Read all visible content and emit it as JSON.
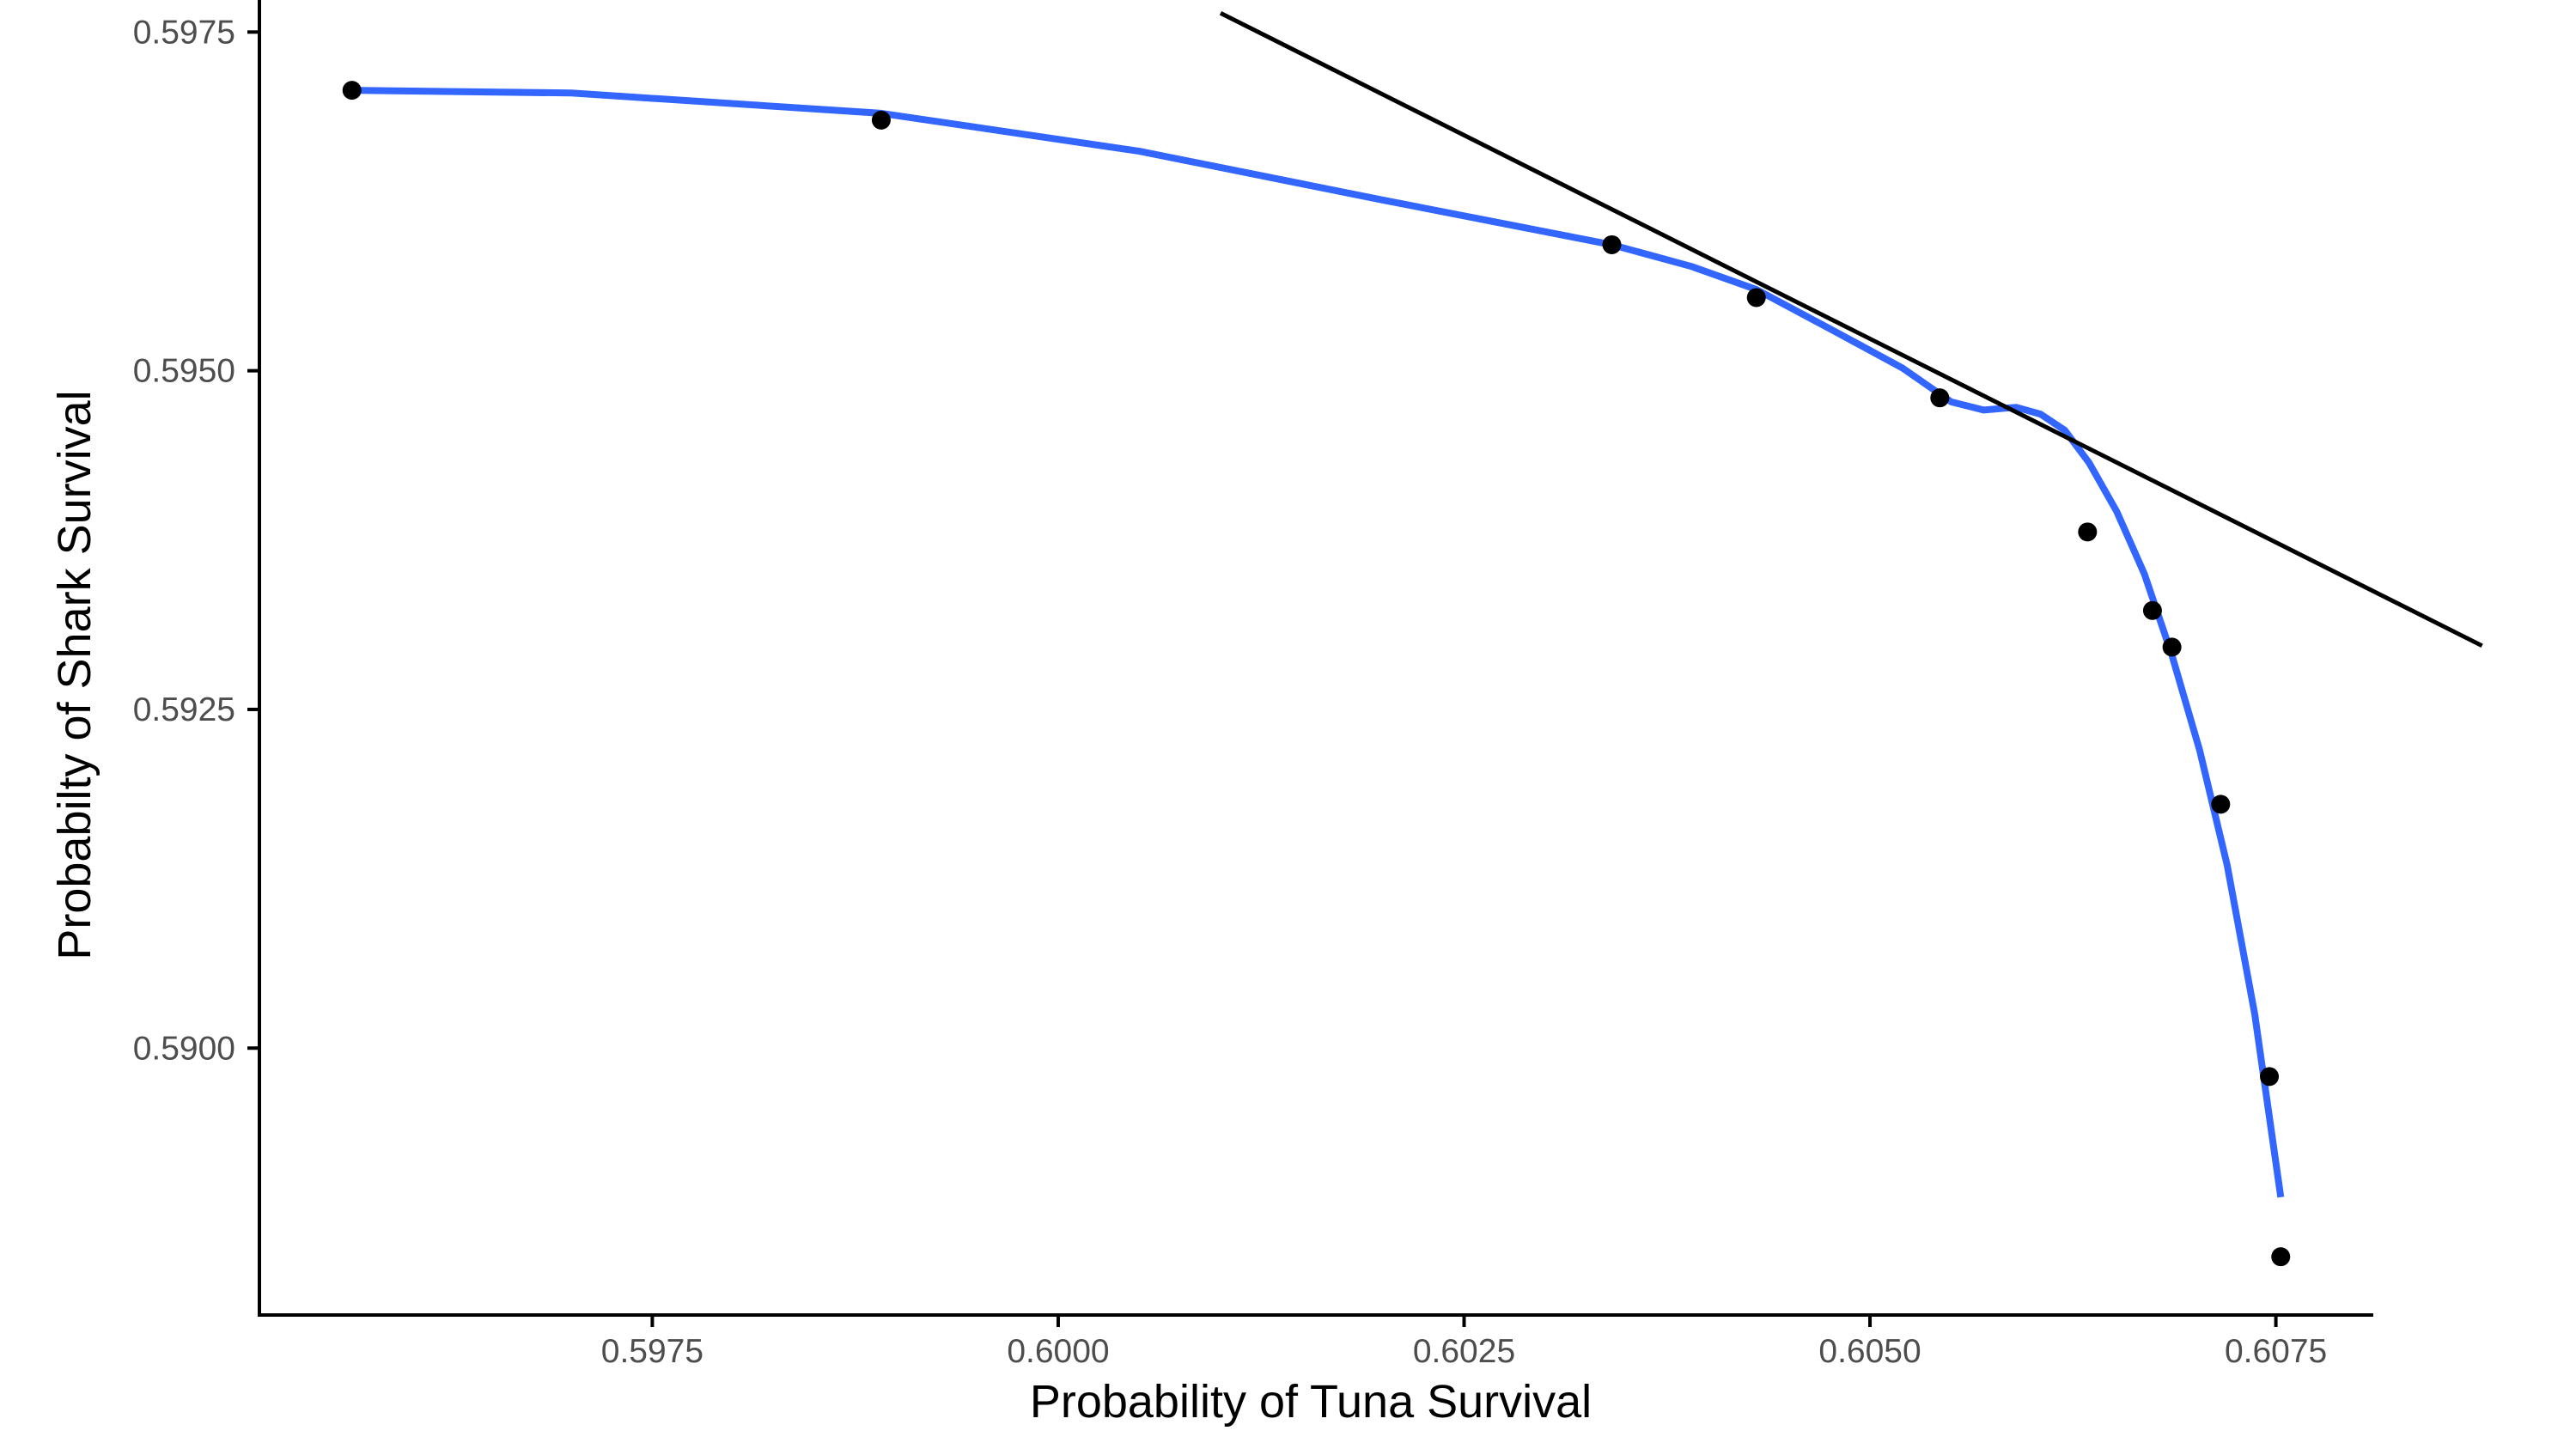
{
  "chart_data": {
    "type": "scatter",
    "title": "",
    "xlabel": "Probability of Tuna Survival",
    "ylabel": "Probabilty of Shark Survival",
    "xlim": [
      0.59508,
      0.6081
    ],
    "ylim": [
      0.58803,
      0.59754
    ],
    "xticks": [
      0.5975,
      0.6,
      0.6025,
      0.605,
      0.6075
    ],
    "xtick_labels": [
      "0.5975",
      "0.6000",
      "0.6025",
      "0.6050",
      "0.6075"
    ],
    "yticks": [
      0.59,
      0.5925,
      0.595,
      0.5975
    ],
    "ytick_labels": [
      "0.5900",
      "0.5925",
      "0.5950",
      "0.5975"
    ],
    "grid": false,
    "colors": {
      "points": "#000000",
      "smooth": "#3366FF",
      "tangent": "#000000",
      "axis": "#000000"
    },
    "points": [
      {
        "x": 0.59565,
        "y": 0.59707
      },
      {
        "x": 0.59891,
        "y": 0.59685
      },
      {
        "x": 0.60341,
        "y": 0.59593
      },
      {
        "x": 0.6043,
        "y": 0.59554
      },
      {
        "x": 0.60543,
        "y": 0.5948
      },
      {
        "x": 0.60634,
        "y": 0.59381
      },
      {
        "x": 0.60674,
        "y": 0.59323
      },
      {
        "x": 0.60686,
        "y": 0.59296
      },
      {
        "x": 0.60716,
        "y": 0.5918
      },
      {
        "x": 0.60746,
        "y": 0.58979
      },
      {
        "x": 0.60753,
        "y": 0.58846
      }
    ],
    "smooth_curve": [
      {
        "x": 0.59565,
        "y": 0.59707
      },
      {
        "x": 0.597,
        "y": 0.59705
      },
      {
        "x": 0.59891,
        "y": 0.5969
      },
      {
        "x": 0.6005,
        "y": 0.59662
      },
      {
        "x": 0.602,
        "y": 0.59626
      },
      {
        "x": 0.60341,
        "y": 0.59593
      },
      {
        "x": 0.6039,
        "y": 0.59577
      },
      {
        "x": 0.6043,
        "y": 0.5956
      },
      {
        "x": 0.6048,
        "y": 0.59528
      },
      {
        "x": 0.6052,
        "y": 0.59502
      },
      {
        "x": 0.6055,
        "y": 0.59477
      },
      {
        "x": 0.6057,
        "y": 0.59471
      },
      {
        "x": 0.6059,
        "y": 0.59473
      },
      {
        "x": 0.60605,
        "y": 0.59468
      },
      {
        "x": 0.6062,
        "y": 0.59456
      },
      {
        "x": 0.60635,
        "y": 0.59432
      },
      {
        "x": 0.60652,
        "y": 0.59396
      },
      {
        "x": 0.60669,
        "y": 0.5935
      },
      {
        "x": 0.60686,
        "y": 0.5929
      },
      {
        "x": 0.60703,
        "y": 0.5922
      },
      {
        "x": 0.6072,
        "y": 0.59135
      },
      {
        "x": 0.60737,
        "y": 0.59025
      },
      {
        "x": 0.60753,
        "y": 0.5889
      }
    ],
    "tangent_line": [
      {
        "x": 0.601,
        "y": 0.59764
      },
      {
        "x": 0.60877,
        "y": 0.59297
      }
    ]
  }
}
